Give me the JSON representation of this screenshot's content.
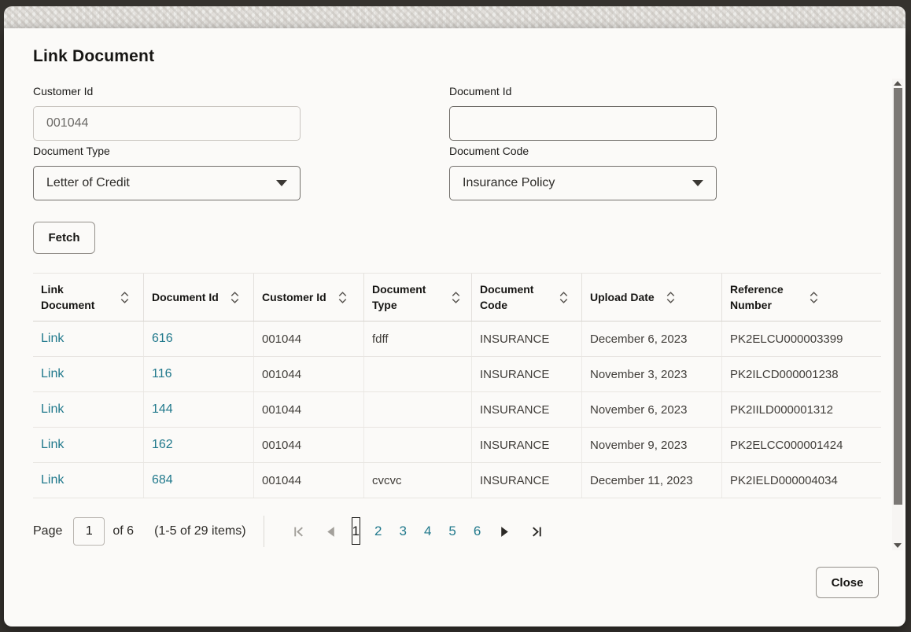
{
  "dialog": {
    "title": "Link Document",
    "close_label": "Close"
  },
  "form": {
    "customer_id": {
      "label": "Customer Id",
      "value": "001044"
    },
    "document_id": {
      "label": "Document Id",
      "value": "",
      "placeholder": ""
    },
    "document_type": {
      "label": "Document Type",
      "value": "Letter of Credit"
    },
    "document_code": {
      "label": "Document Code",
      "value": "Insurance Policy"
    },
    "fetch_label": "Fetch"
  },
  "table": {
    "columns": [
      "Link Document",
      "Document Id",
      "Customer Id",
      "Document Type",
      "Document Code",
      "Upload Date",
      "Reference Number"
    ],
    "rows": [
      {
        "link": "Link",
        "document_id": "616",
        "customer_id": "001044",
        "document_type": "fdff",
        "document_code": "INSURANCE",
        "upload_date": "December 6, 2023",
        "reference_number": "PK2ELCU000003399"
      },
      {
        "link": "Link",
        "document_id": "116",
        "customer_id": "001044",
        "document_type": "",
        "document_code": "INSURANCE",
        "upload_date": "November 3, 2023",
        "reference_number": "PK2ILCD000001238"
      },
      {
        "link": "Link",
        "document_id": "144",
        "customer_id": "001044",
        "document_type": "",
        "document_code": "INSURANCE",
        "upload_date": "November 6, 2023",
        "reference_number": "PK2IILD000001312"
      },
      {
        "link": "Link",
        "document_id": "162",
        "customer_id": "001044",
        "document_type": "",
        "document_code": "INSURANCE",
        "upload_date": "November 9, 2023",
        "reference_number": "PK2ELCC000001424"
      },
      {
        "link": "Link",
        "document_id": "684",
        "customer_id": "001044",
        "document_type": "cvcvc",
        "document_code": "INSURANCE",
        "upload_date": "December 11, 2023",
        "reference_number": "PK2IELD000004034"
      }
    ]
  },
  "pagination": {
    "page_label": "Page",
    "current_page": "1",
    "of_label": "of 6",
    "items_summary": "(1-5 of 29 items)",
    "pages": [
      "1",
      "2",
      "3",
      "4",
      "5",
      "6"
    ]
  },
  "colors": {
    "link": "#21798c",
    "text": "#161513",
    "backdrop": "#35322e",
    "modal_bg": "#fbfaf8"
  }
}
